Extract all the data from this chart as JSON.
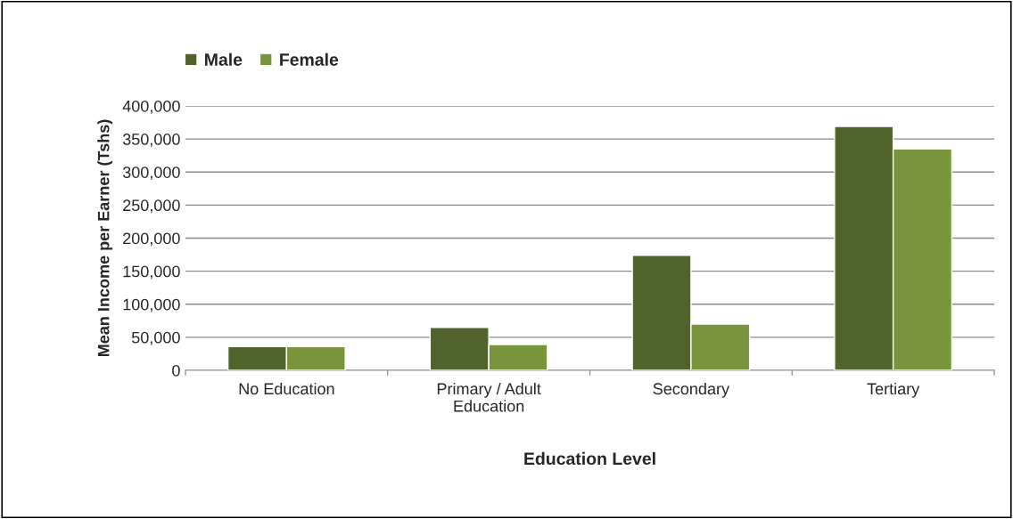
{
  "chart_data": {
    "type": "bar",
    "categories": [
      "No Education",
      "Primary / Adult\nEducation",
      "Secondary",
      "Tertiary"
    ],
    "series": [
      {
        "name": "Male",
        "color": "#50632a",
        "values": [
          36000,
          65000,
          174000,
          369000
        ]
      },
      {
        "name": "Female",
        "color": "#78943c",
        "values": [
          36000,
          39000,
          70000,
          335000
        ]
      }
    ],
    "xlabel": "Education Level",
    "ylabel": "Mean Income per Earner (Tshs)",
    "ylim": [
      0,
      400000
    ],
    "yticks": [
      {
        "value": 0,
        "label": "0"
      },
      {
        "value": 50000,
        "label": "50,000"
      },
      {
        "value": 100000,
        "label": "100,000"
      },
      {
        "value": 150000,
        "label": "150,000"
      },
      {
        "value": 200000,
        "label": "200,000"
      },
      {
        "value": 250000,
        "label": "250,000"
      },
      {
        "value": 300000,
        "label": "300,000"
      },
      {
        "value": 350000,
        "label": "350,000"
      },
      {
        "value": 400000,
        "label": "400,000"
      }
    ],
    "grid": "y",
    "legend": "top left"
  }
}
